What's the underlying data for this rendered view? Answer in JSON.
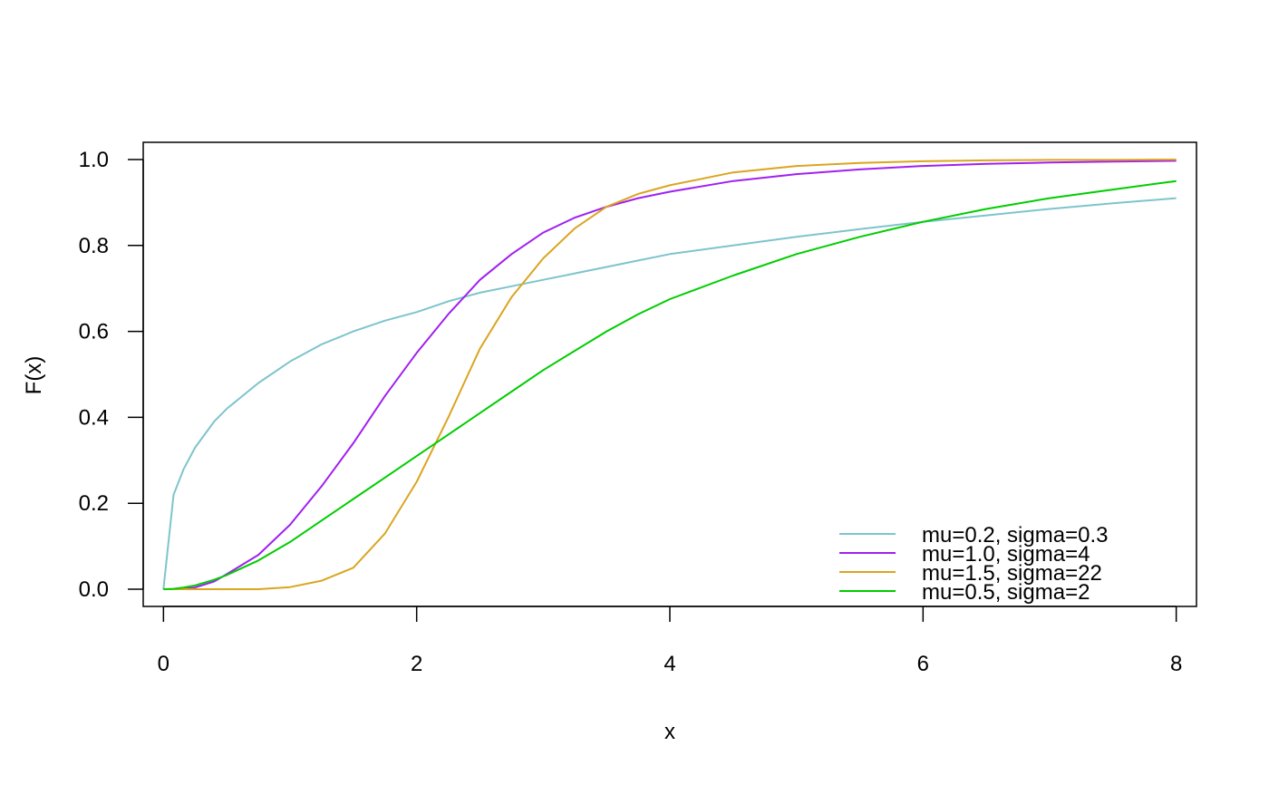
{
  "chart_data": {
    "type": "line",
    "title": "",
    "xlabel": "x",
    "ylabel": "F(x)",
    "xlim": [
      -0.16,
      8.16
    ],
    "ylim": [
      -0.04,
      1.04
    ],
    "xticks": [
      0,
      2,
      4,
      6,
      8
    ],
    "xtick_labels": [
      "0",
      "2",
      "4",
      "6",
      "8"
    ],
    "yticks": [
      0,
      0.2,
      0.4,
      0.6,
      0.8,
      1.0
    ],
    "ytick_labels": [
      "0.0",
      "0.2",
      "0.4",
      "0.6",
      "0.8",
      "1.0"
    ],
    "grid": false,
    "legend_position": "bottom-right",
    "x": [
      0,
      0.08,
      0.16,
      0.25,
      0.4,
      0.5,
      0.75,
      1.0,
      1.25,
      1.5,
      1.75,
      2.0,
      2.25,
      2.5,
      2.75,
      3.0,
      3.25,
      3.5,
      3.75,
      4.0,
      4.5,
      5.0,
      5.5,
      6.0,
      6.5,
      7.0,
      7.5,
      8.0
    ],
    "series": [
      {
        "name": "mu=0.2, sigma=0.3",
        "color": "#7ec4cc",
        "values": [
          0,
          0.22,
          0.28,
          0.33,
          0.39,
          0.42,
          0.48,
          0.53,
          0.57,
          0.6,
          0.625,
          0.645,
          0.67,
          0.69,
          0.705,
          0.72,
          0.735,
          0.75,
          0.765,
          0.78,
          0.8,
          0.82,
          0.838,
          0.855,
          0.87,
          0.885,
          0.898,
          0.91
        ]
      },
      {
        "name": "mu=1.0, sigma=4",
        "color": "#a020f0",
        "values": [
          0,
          0.0002,
          0.001,
          0.004,
          0.018,
          0.035,
          0.08,
          0.15,
          0.24,
          0.34,
          0.45,
          0.55,
          0.64,
          0.72,
          0.78,
          0.83,
          0.865,
          0.89,
          0.91,
          0.925,
          0.95,
          0.966,
          0.977,
          0.985,
          0.99,
          0.993,
          0.995,
          0.997
        ]
      },
      {
        "name": "mu=1.5, sigma=22",
        "color": "#daa520",
        "values": [
          0,
          0,
          0,
          0,
          0,
          0,
          0,
          0.005,
          0.02,
          0.05,
          0.13,
          0.25,
          0.4,
          0.56,
          0.68,
          0.77,
          0.84,
          0.89,
          0.92,
          0.94,
          0.97,
          0.985,
          0.992,
          0.996,
          0.998,
          0.999,
          0.999,
          1.0
        ]
      },
      {
        "name": "mu=0.5, sigma=2",
        "color": "#00cd00",
        "values": [
          0,
          0.001,
          0.004,
          0.009,
          0.022,
          0.033,
          0.067,
          0.11,
          0.16,
          0.21,
          0.26,
          0.31,
          0.36,
          0.41,
          0.46,
          0.51,
          0.555,
          0.6,
          0.64,
          0.675,
          0.73,
          0.78,
          0.82,
          0.855,
          0.885,
          0.91,
          0.93,
          0.95
        ]
      }
    ]
  }
}
